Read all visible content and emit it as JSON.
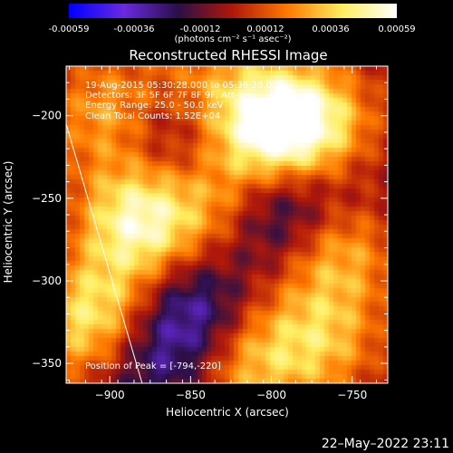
{
  "colorbar": {
    "ticks": [
      "-0.00059",
      "-0.00036",
      "-0.00012",
      "0.00012",
      "0.00036",
      "0.00059"
    ],
    "unit": "(photons cm⁻² s⁻¹ asec⁻²)",
    "colors": [
      "#0000ff",
      "#6a2ae0",
      "#2b0f47",
      "#b0180a",
      "#ff7a00",
      "#ffee60",
      "#ffffff"
    ]
  },
  "chart_data": {
    "type": "heatmap",
    "title": "Reconstructed RHESSI Image",
    "xlabel": "Heliocentric X (arcsec)",
    "ylabel": "Heliocentric Y (arcsec)",
    "xlim": [
      -927,
      -728
    ],
    "ylim": [
      -362,
      -170
    ],
    "x_ticks": [
      -900,
      -850,
      -800,
      -750
    ],
    "y_ticks": [
      -200,
      -250,
      -300,
      -350
    ],
    "limb_line": [
      [
        -927,
        -205
      ],
      [
        -880,
        -362
      ]
    ],
    "annotations": [
      "19-Aug-2015 05:30:28.000 to 05:36:28.000",
      "Detectors: 3F 5F 6F 7F 8F 9F, Att 0",
      "Energy Range: 25.0 - 50.0 keV",
      "Clean     Total Counts: 1.52E+04"
    ],
    "peak_label": "Position of Peak = [-794,-220]",
    "bright_regions": [
      {
        "x": -800,
        "y": -205,
        "level": 1.0
      },
      {
        "x": -880,
        "y": -262,
        "level": 0.95
      },
      {
        "x": -900,
        "y": -200,
        "level": 0.55
      },
      {
        "x": -825,
        "y": -250,
        "level": 0.6
      },
      {
        "x": -770,
        "y": -210,
        "level": 0.7
      },
      {
        "x": -760,
        "y": -280,
        "level": 0.6
      },
      {
        "x": -770,
        "y": -335,
        "level": 0.55
      },
      {
        "x": -815,
        "y": -350,
        "level": 0.55
      },
      {
        "x": -915,
        "y": -330,
        "level": 0.5
      },
      {
        "x": -900,
        "y": -315,
        "level": 0.4
      },
      {
        "x": -845,
        "y": -180,
        "level": 0.35
      }
    ],
    "dim_regions": [
      {
        "x": -800,
        "y": -255,
        "level": -0.75
      },
      {
        "x": -850,
        "y": -320,
        "level": -0.6
      },
      {
        "x": -865,
        "y": -215,
        "level": -0.45
      },
      {
        "x": -760,
        "y": -240,
        "level": -0.3
      },
      {
        "x": -880,
        "y": -350,
        "level": -0.4
      }
    ]
  },
  "footer": {
    "timestamp": "22–May–2022 23:11"
  }
}
